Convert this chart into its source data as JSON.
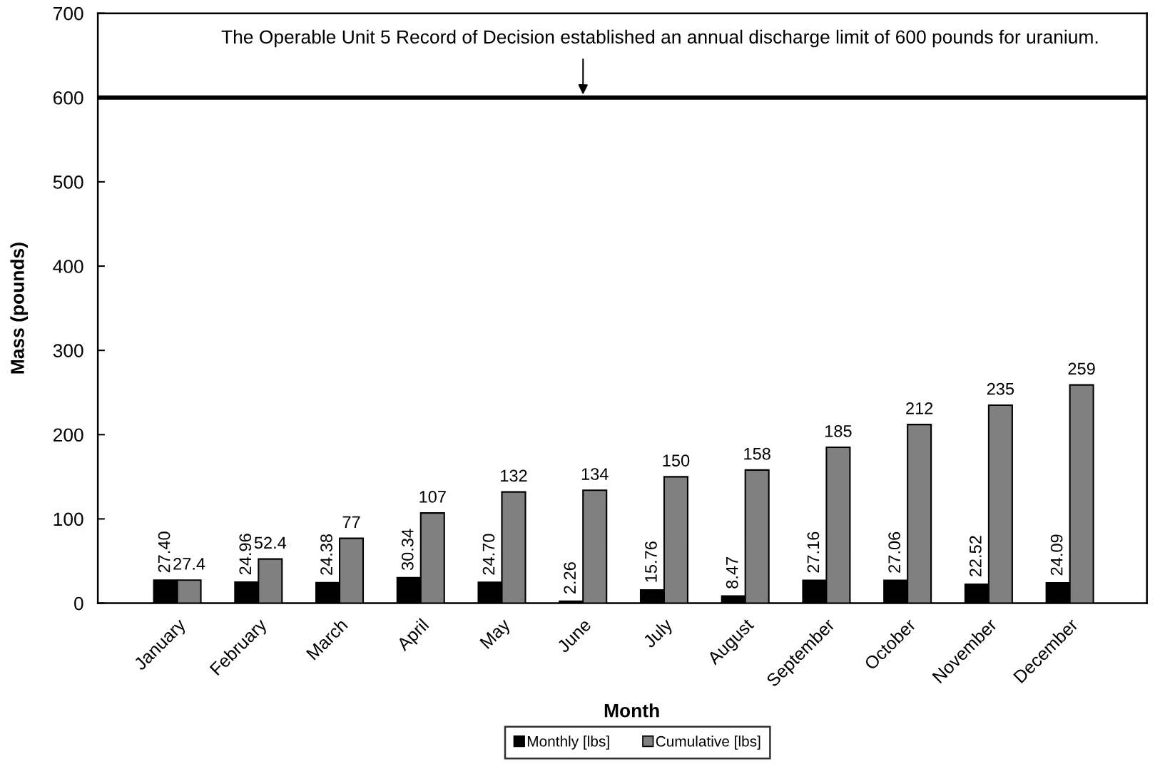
{
  "chart_data": {
    "type": "bar",
    "xlabel": "Month",
    "ylabel": "Mass (pounds)",
    "categories": [
      "January",
      "February",
      "March",
      "April",
      "May",
      "June",
      "July",
      "August",
      "September",
      "October",
      "November",
      "December"
    ],
    "ylim": [
      0,
      700
    ],
    "yticks": [
      0,
      100,
      200,
      300,
      400,
      500,
      600,
      700
    ],
    "legend": "bottom",
    "series": [
      {
        "name": "Monthly [lbs]",
        "color": "#000000",
        "values": [
          27.4,
          24.96,
          24.38,
          30.34,
          24.7,
          2.26,
          15.76,
          8.47,
          27.16,
          27.06,
          22.52,
          24.09
        ],
        "value_labels": [
          "27.40",
          "24.96",
          "24.38",
          "30.34",
          "24.70",
          "2.26",
          "15.76",
          "8.47",
          "27.16",
          "27.06",
          "22.52",
          "24.09"
        ]
      },
      {
        "name": "Cumulative [lbs]",
        "color": "#808080",
        "values": [
          27.4,
          52.4,
          77,
          107,
          132,
          134,
          150,
          158,
          185,
          212,
          235,
          259
        ],
        "value_labels": [
          "27.4",
          "52.4",
          "77",
          "107",
          "132",
          "134",
          "150",
          "158",
          "185",
          "212",
          "235",
          "259"
        ]
      }
    ],
    "ref_lines": [
      {
        "axis": "y",
        "value": 600,
        "color": "#000000"
      }
    ],
    "annotations": [
      {
        "text": "The Operable Unit 5 Record of Decision established an annual discharge limit of 600 pounds for uranium.",
        "x": "June",
        "y": 600
      }
    ]
  }
}
